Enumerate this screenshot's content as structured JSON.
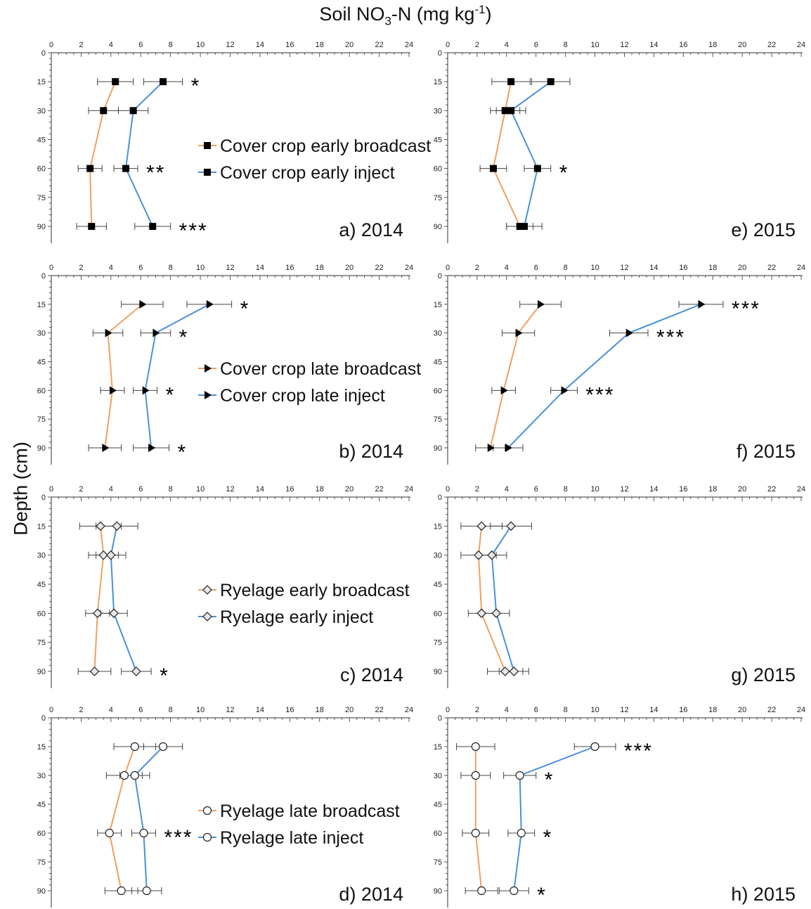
{
  "title": {
    "prefix": "Soil NO",
    "sub": "3",
    "middle": "-N (mg kg",
    "sup": "-1",
    "suffix": ")"
  },
  "y_axis_title": "Depth (cm)",
  "colors": {
    "broadcast": "#f0a060",
    "inject": "#4a90d9",
    "axis": "#333333",
    "errorbar": "#444444"
  },
  "chart_data": [
    {
      "panel_label": "a)",
      "year": "2014",
      "type": "line",
      "xlim": [
        0,
        24
      ],
      "ylim": [
        0,
        90
      ],
      "marker": "square",
      "xticks": [
        "0",
        "2",
        "4",
        "6",
        "8",
        "10",
        "12",
        "14",
        "16",
        "18",
        "20",
        "22",
        "24"
      ],
      "yticks": [
        "0",
        "15",
        "30",
        "45",
        "60",
        "75",
        "90"
      ],
      "legend": [
        "Cover crop early broadcast",
        "Cover crop early inject"
      ],
      "series": [
        {
          "name": "Cover crop early broadcast",
          "x": [
            4.3,
            3.5,
            2.6,
            2.7
          ],
          "y": [
            15,
            30,
            60,
            90
          ],
          "err": [
            1.2,
            1.0,
            0.8,
            1.0
          ]
        },
        {
          "name": "Cover crop early inject",
          "x": [
            7.5,
            5.5,
            5.0,
            6.8
          ],
          "y": [
            15,
            30,
            60,
            90
          ],
          "err": [
            1.3,
            1.0,
            0.8,
            1.2
          ]
        }
      ],
      "annotations": [
        {
          "text": "*",
          "y": 15
        },
        {
          "text": "**",
          "y": 60
        },
        {
          "text": "***",
          "y": 90
        }
      ]
    },
    {
      "panel_label": "b)",
      "year": "2014",
      "type": "line",
      "xlim": [
        0,
        24
      ],
      "ylim": [
        0,
        90
      ],
      "marker": "triangle",
      "xticks": [
        "0",
        "2",
        "4",
        "6",
        "8",
        "10",
        "12",
        "14",
        "16",
        "18",
        "20",
        "22",
        "24"
      ],
      "yticks": [
        "0",
        "15",
        "30",
        "45",
        "60",
        "75",
        "90"
      ],
      "legend": [
        "Cover crop late broadcast",
        "Cover crop late inject"
      ],
      "series": [
        {
          "name": "Cover crop late broadcast",
          "x": [
            6.1,
            3.8,
            4.1,
            3.6
          ],
          "y": [
            15,
            30,
            60,
            90
          ],
          "err": [
            1.4,
            1.0,
            0.8,
            1.1
          ]
        },
        {
          "name": "Cover crop late inject",
          "x": [
            10.6,
            7.0,
            6.3,
            6.7
          ],
          "y": [
            15,
            30,
            60,
            90
          ],
          "err": [
            1.5,
            1.0,
            0.8,
            1.2
          ]
        }
      ],
      "annotations": [
        {
          "text": "*",
          "y": 15
        },
        {
          "text": "*",
          "y": 30
        },
        {
          "text": "*",
          "y": 60
        },
        {
          "text": "*",
          "y": 90
        }
      ]
    },
    {
      "panel_label": "c)",
      "year": "2014",
      "type": "line",
      "xlim": [
        0,
        24
      ],
      "ylim": [
        0,
        90
      ],
      "marker": "diamond",
      "xticks": [
        "0",
        "2",
        "4",
        "6",
        "8",
        "10",
        "12",
        "14",
        "16",
        "18",
        "20",
        "22",
        "24"
      ],
      "yticks": [
        "0",
        "15",
        "30",
        "45",
        "60",
        "75",
        "90"
      ],
      "legend": [
        "Ryelage early broadcast",
        "Ryelage early inject"
      ],
      "series": [
        {
          "name": "Ryelage early broadcast",
          "x": [
            3.3,
            3.5,
            3.1,
            2.9
          ],
          "y": [
            15,
            30,
            60,
            90
          ],
          "err": [
            1.4,
            1.0,
            0.8,
            1.1
          ]
        },
        {
          "name": "Ryelage early inject",
          "x": [
            4.4,
            4.0,
            4.2,
            5.7
          ],
          "y": [
            15,
            30,
            60,
            90
          ],
          "err": [
            1.4,
            1.0,
            0.9,
            1.0
          ]
        }
      ],
      "annotations": [
        {
          "text": "*",
          "y": 90
        }
      ]
    },
    {
      "panel_label": "d)",
      "year": "2014",
      "type": "line",
      "xlim": [
        0,
        24
      ],
      "ylim": [
        0,
        90
      ],
      "marker": "circle",
      "xticks": [
        "0",
        "2",
        "4",
        "6",
        "8",
        "10",
        "12",
        "14",
        "16",
        "18",
        "20",
        "22",
        "24"
      ],
      "yticks": [
        "0",
        "15",
        "30",
        "45",
        "60",
        "75",
        "90"
      ],
      "legend": [
        "Ryelage late broadcast",
        "Ryelage late inject"
      ],
      "series": [
        {
          "name": "Ryelage late broadcast",
          "x": [
            5.6,
            4.9,
            3.9,
            4.7
          ],
          "y": [
            15,
            30,
            60,
            90
          ],
          "err": [
            1.4,
            1.2,
            0.8,
            1.1
          ]
        },
        {
          "name": "Ryelage late inject",
          "x": [
            7.5,
            5.6,
            6.2,
            6.4
          ],
          "y": [
            15,
            30,
            60,
            90
          ],
          "err": [
            1.3,
            1.0,
            0.8,
            1.0
          ]
        }
      ],
      "annotations": [
        {
          "text": "***",
          "y": 60
        }
      ]
    },
    {
      "panel_label": "e)",
      "year": "2015",
      "type": "line",
      "xlim": [
        0,
        24
      ],
      "ylim": [
        0,
        90
      ],
      "marker": "square",
      "xticks": [
        "0",
        "2",
        "4",
        "6",
        "8",
        "10",
        "12",
        "14",
        "16",
        "18",
        "20",
        "22",
        "24"
      ],
      "yticks": [
        "0",
        "15",
        "30",
        "45",
        "60",
        "75",
        "90"
      ],
      "series": [
        {
          "name": "Cover crop early broadcast",
          "x": [
            4.3,
            3.9,
            3.1,
            4.9
          ],
          "y": [
            15,
            30,
            60,
            90
          ],
          "err": [
            1.3,
            1.0,
            0.9,
            0.9
          ]
        },
        {
          "name": "Cover crop early inject",
          "x": [
            7.0,
            4.3,
            6.1,
            5.2
          ],
          "y": [
            15,
            30,
            60,
            90
          ],
          "err": [
            1.3,
            1.0,
            0.9,
            1.2
          ]
        }
      ],
      "annotations": [
        {
          "text": "*",
          "y": 60
        }
      ]
    },
    {
      "panel_label": "f)",
      "year": "2015",
      "type": "line",
      "xlim": [
        0,
        24
      ],
      "ylim": [
        0,
        90
      ],
      "marker": "triangle",
      "xticks": [
        "0",
        "2",
        "4",
        "6",
        "8",
        "10",
        "12",
        "14",
        "16",
        "18",
        "20",
        "22",
        "24"
      ],
      "yticks": [
        "0",
        "15",
        "30",
        "45",
        "60",
        "75",
        "90"
      ],
      "series": [
        {
          "name": "Cover crop late broadcast",
          "x": [
            6.3,
            4.8,
            3.8,
            2.9
          ],
          "y": [
            15,
            30,
            60,
            90
          ],
          "err": [
            1.4,
            1.1,
            0.8,
            1.0
          ]
        },
        {
          "name": "Cover crop late inject",
          "x": [
            17.2,
            12.3,
            7.9,
            4.1
          ],
          "y": [
            15,
            30,
            60,
            90
          ],
          "err": [
            1.5,
            1.3,
            0.9,
            1.0
          ]
        }
      ],
      "annotations": [
        {
          "text": "***",
          "y": 15
        },
        {
          "text": "***",
          "y": 30
        },
        {
          "text": "***",
          "y": 60
        }
      ]
    },
    {
      "panel_label": "g)",
      "year": "2015",
      "type": "line",
      "xlim": [
        0,
        24
      ],
      "ylim": [
        0,
        90
      ],
      "marker": "diamond",
      "xticks": [
        "0",
        "2",
        "4",
        "6",
        "8",
        "10",
        "12",
        "14",
        "16",
        "18",
        "20",
        "22",
        "24"
      ],
      "yticks": [
        "0",
        "15",
        "30",
        "45",
        "60",
        "75",
        "90"
      ],
      "series": [
        {
          "name": "Ryelage early broadcast",
          "x": [
            2.3,
            2.1,
            2.3,
            3.9
          ],
          "y": [
            15,
            30,
            60,
            90
          ],
          "err": [
            1.4,
            1.2,
            0.9,
            1.2
          ]
        },
        {
          "name": "Ryelage early inject",
          "x": [
            4.3,
            3.0,
            3.3,
            4.5
          ],
          "y": [
            15,
            30,
            60,
            90
          ],
          "err": [
            1.4,
            1.0,
            0.9,
            1.0
          ]
        }
      ],
      "annotations": []
    },
    {
      "panel_label": "h)",
      "year": "2015",
      "type": "line",
      "xlim": [
        0,
        24
      ],
      "ylim": [
        0,
        90
      ],
      "marker": "circle",
      "xticks": [
        "0",
        "2",
        "4",
        "6",
        "8",
        "10",
        "12",
        "14",
        "16",
        "18",
        "20",
        "22",
        "24"
      ],
      "yticks": [
        "0",
        "15",
        "30",
        "45",
        "60",
        "75",
        "90"
      ],
      "series": [
        {
          "name": "Ryelage late broadcast",
          "x": [
            1.9,
            1.9,
            1.9,
            2.3
          ],
          "y": [
            15,
            30,
            60,
            90
          ],
          "err": [
            1.3,
            1.0,
            0.9,
            1.1
          ]
        },
        {
          "name": "Ryelage late inject",
          "x": [
            10.0,
            4.9,
            5.0,
            4.5
          ],
          "y": [
            15,
            30,
            60,
            90
          ],
          "err": [
            1.4,
            1.1,
            0.9,
            1.0
          ]
        }
      ],
      "annotations": [
        {
          "text": "***",
          "y": 15
        },
        {
          "text": "*",
          "y": 30
        },
        {
          "text": "*",
          "y": 60
        },
        {
          "text": "*",
          "y": 90
        }
      ]
    }
  ]
}
